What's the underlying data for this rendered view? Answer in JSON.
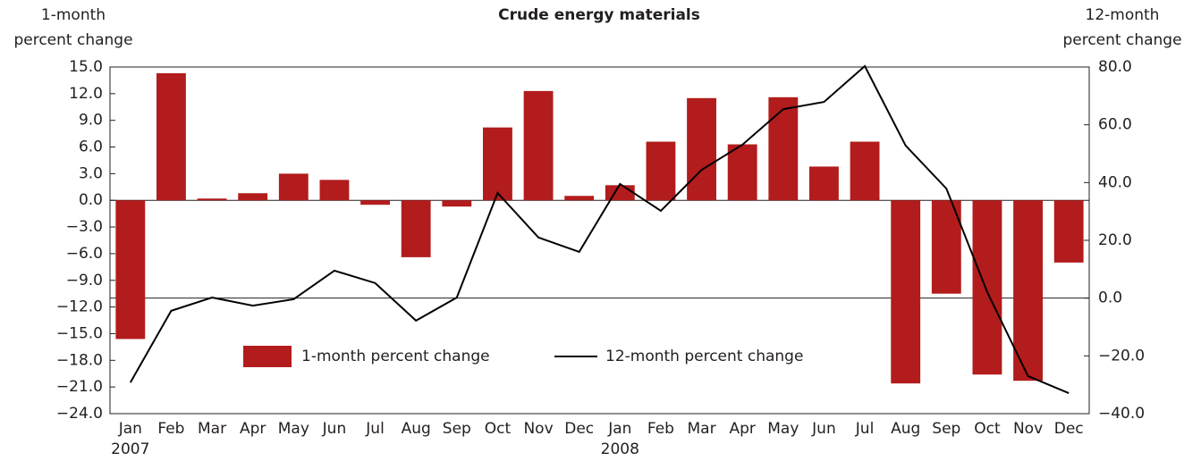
{
  "chart_data": {
    "type": "bar_line",
    "title": "Crude energy materials",
    "y_label": [
      "1-month",
      "percent change"
    ],
    "y2_label": [
      "12-month",
      "percent change"
    ],
    "categories": [
      "Jan",
      "Feb",
      "Mar",
      "Apr",
      "May",
      "Jun",
      "Jul",
      "Aug",
      "Sep",
      "Oct",
      "Nov",
      "Dec",
      "Jan",
      "Feb",
      "Mar",
      "Apr",
      "May",
      "Jun",
      "Jul",
      "Aug",
      "Sep",
      "Oct",
      "Nov",
      "Dec"
    ],
    "years": [
      {
        "category": 0,
        "label": "2007"
      },
      {
        "category": 12,
        "label": "2008"
      }
    ],
    "series": [
      {
        "name": "1-month percent change",
        "type": "bar",
        "color": "#b21c1c",
        "values": [
          -15.6,
          14.3,
          0.2,
          0.8,
          3.0,
          2.3,
          -0.5,
          -6.4,
          -0.7,
          8.2,
          12.3,
          0.5,
          1.7,
          6.6,
          11.5,
          6.3,
          11.6,
          3.8,
          6.6,
          -20.6,
          -10.5,
          -19.6,
          -20.3,
          -7.0
        ]
      },
      {
        "name": "12-month percent change",
        "type": "line",
        "axis": "y2",
        "color": "#000000",
        "values": [
          -29.2,
          -4.4,
          0.2,
          -2.6,
          -0.4,
          9.5,
          5.2,
          -7.8,
          0.2,
          36.4,
          21.0,
          16.0,
          39.5,
          30.2,
          44.4,
          53.1,
          65.4,
          67.9,
          80.3,
          52.8,
          37.9,
          2.1,
          -27.0,
          -32.9
        ]
      }
    ],
    "ylim": [
      -24,
      15
    ],
    "yticks": [
      {
        "value": 15,
        "label": "15.0"
      },
      {
        "value": 12,
        "label": "12.0"
      },
      {
        "value": 9,
        "label": "9.0"
      },
      {
        "value": 6,
        "label": "6.0"
      },
      {
        "value": 3,
        "label": "3.0"
      },
      {
        "value": 0,
        "label": "0.0"
      },
      {
        "value": -3,
        "label": "−3.0"
      },
      {
        "value": -6,
        "label": "−6.0"
      },
      {
        "value": -9,
        "label": "−9.0"
      },
      {
        "value": -12,
        "label": "−12.0"
      },
      {
        "value": -15,
        "label": "−15.0"
      },
      {
        "value": -18,
        "label": "−18.0"
      },
      {
        "value": -21,
        "label": "−21.0"
      },
      {
        "value": -24,
        "label": "−24.0"
      }
    ],
    "y2lim": [
      -40,
      80
    ],
    "y2ticks": [
      {
        "value": 80,
        "label": "80.0"
      },
      {
        "value": 60,
        "label": "60.0"
      },
      {
        "value": 40,
        "label": "40.0"
      },
      {
        "value": 20,
        "label": "20.0"
      },
      {
        "value": 0,
        "label": "0.0"
      },
      {
        "value": -20,
        "label": "−20.0"
      },
      {
        "value": -40,
        "label": "−40.0"
      }
    ]
  }
}
